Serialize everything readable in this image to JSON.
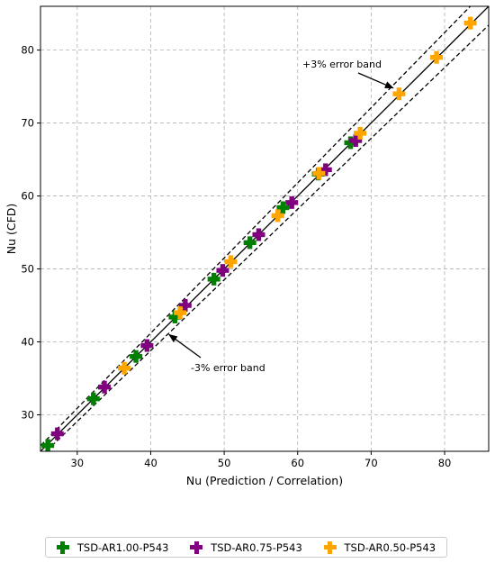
{
  "chart_data": {
    "type": "scatter",
    "title": "",
    "xlabel": "Nu (Prediction / Correlation)",
    "ylabel": "Nu (CFD)",
    "xlim": [
      25,
      86
    ],
    "ylim": [
      25,
      86
    ],
    "xticks": [
      30,
      40,
      50,
      60,
      70,
      80
    ],
    "yticks": [
      30,
      40,
      50,
      60,
      70,
      80
    ],
    "grid": true,
    "legend_position": "bottom, outside plot",
    "reference_lines": [
      {
        "kind": "identity",
        "style": "solid",
        "slope": 1.0
      },
      {
        "kind": "upper-band",
        "style": "dashed",
        "slope": 1.03
      },
      {
        "kind": "lower-band",
        "style": "dashed",
        "slope": 0.97
      }
    ],
    "annotations": [
      {
        "text": "+3% error band",
        "arrow_to": [
          73.0,
          74.8
        ]
      },
      {
        "text": "-3% error band",
        "arrow_to": [
          42.5,
          41.0
        ]
      }
    ],
    "series": [
      {
        "name": "TSD-AR1.00-P543",
        "color": "#008000",
        "points": [
          [
            26.0,
            25.8
          ],
          [
            32.2,
            32.2
          ],
          [
            38.0,
            38.0
          ],
          [
            43.3,
            43.4
          ],
          [
            48.6,
            48.6
          ],
          [
            53.5,
            53.6
          ],
          [
            58.0,
            58.4
          ],
          [
            62.8,
            63.0
          ],
          [
            67.2,
            67.3
          ]
        ]
      },
      {
        "name": "TSD-AR0.75-P543",
        "color": "#800080",
        "points": [
          [
            27.3,
            27.4
          ],
          [
            33.7,
            33.8
          ],
          [
            39.5,
            39.5
          ],
          [
            44.7,
            45.0
          ],
          [
            49.8,
            49.8
          ],
          [
            54.7,
            54.7
          ],
          [
            59.2,
            59.1
          ],
          [
            63.8,
            63.6
          ],
          [
            67.9,
            67.6
          ]
        ]
      },
      {
        "name": "TSD-AR0.50-P543",
        "color": "#FFA500",
        "points": [
          [
            36.4,
            36.4
          ],
          [
            44.0,
            44.0
          ],
          [
            50.9,
            51.0
          ],
          [
            57.3,
            57.3
          ],
          [
            62.9,
            63.1
          ],
          [
            68.5,
            68.6
          ],
          [
            73.8,
            74.0
          ],
          [
            78.9,
            79.0
          ],
          [
            83.5,
            83.7
          ]
        ]
      }
    ]
  }
}
